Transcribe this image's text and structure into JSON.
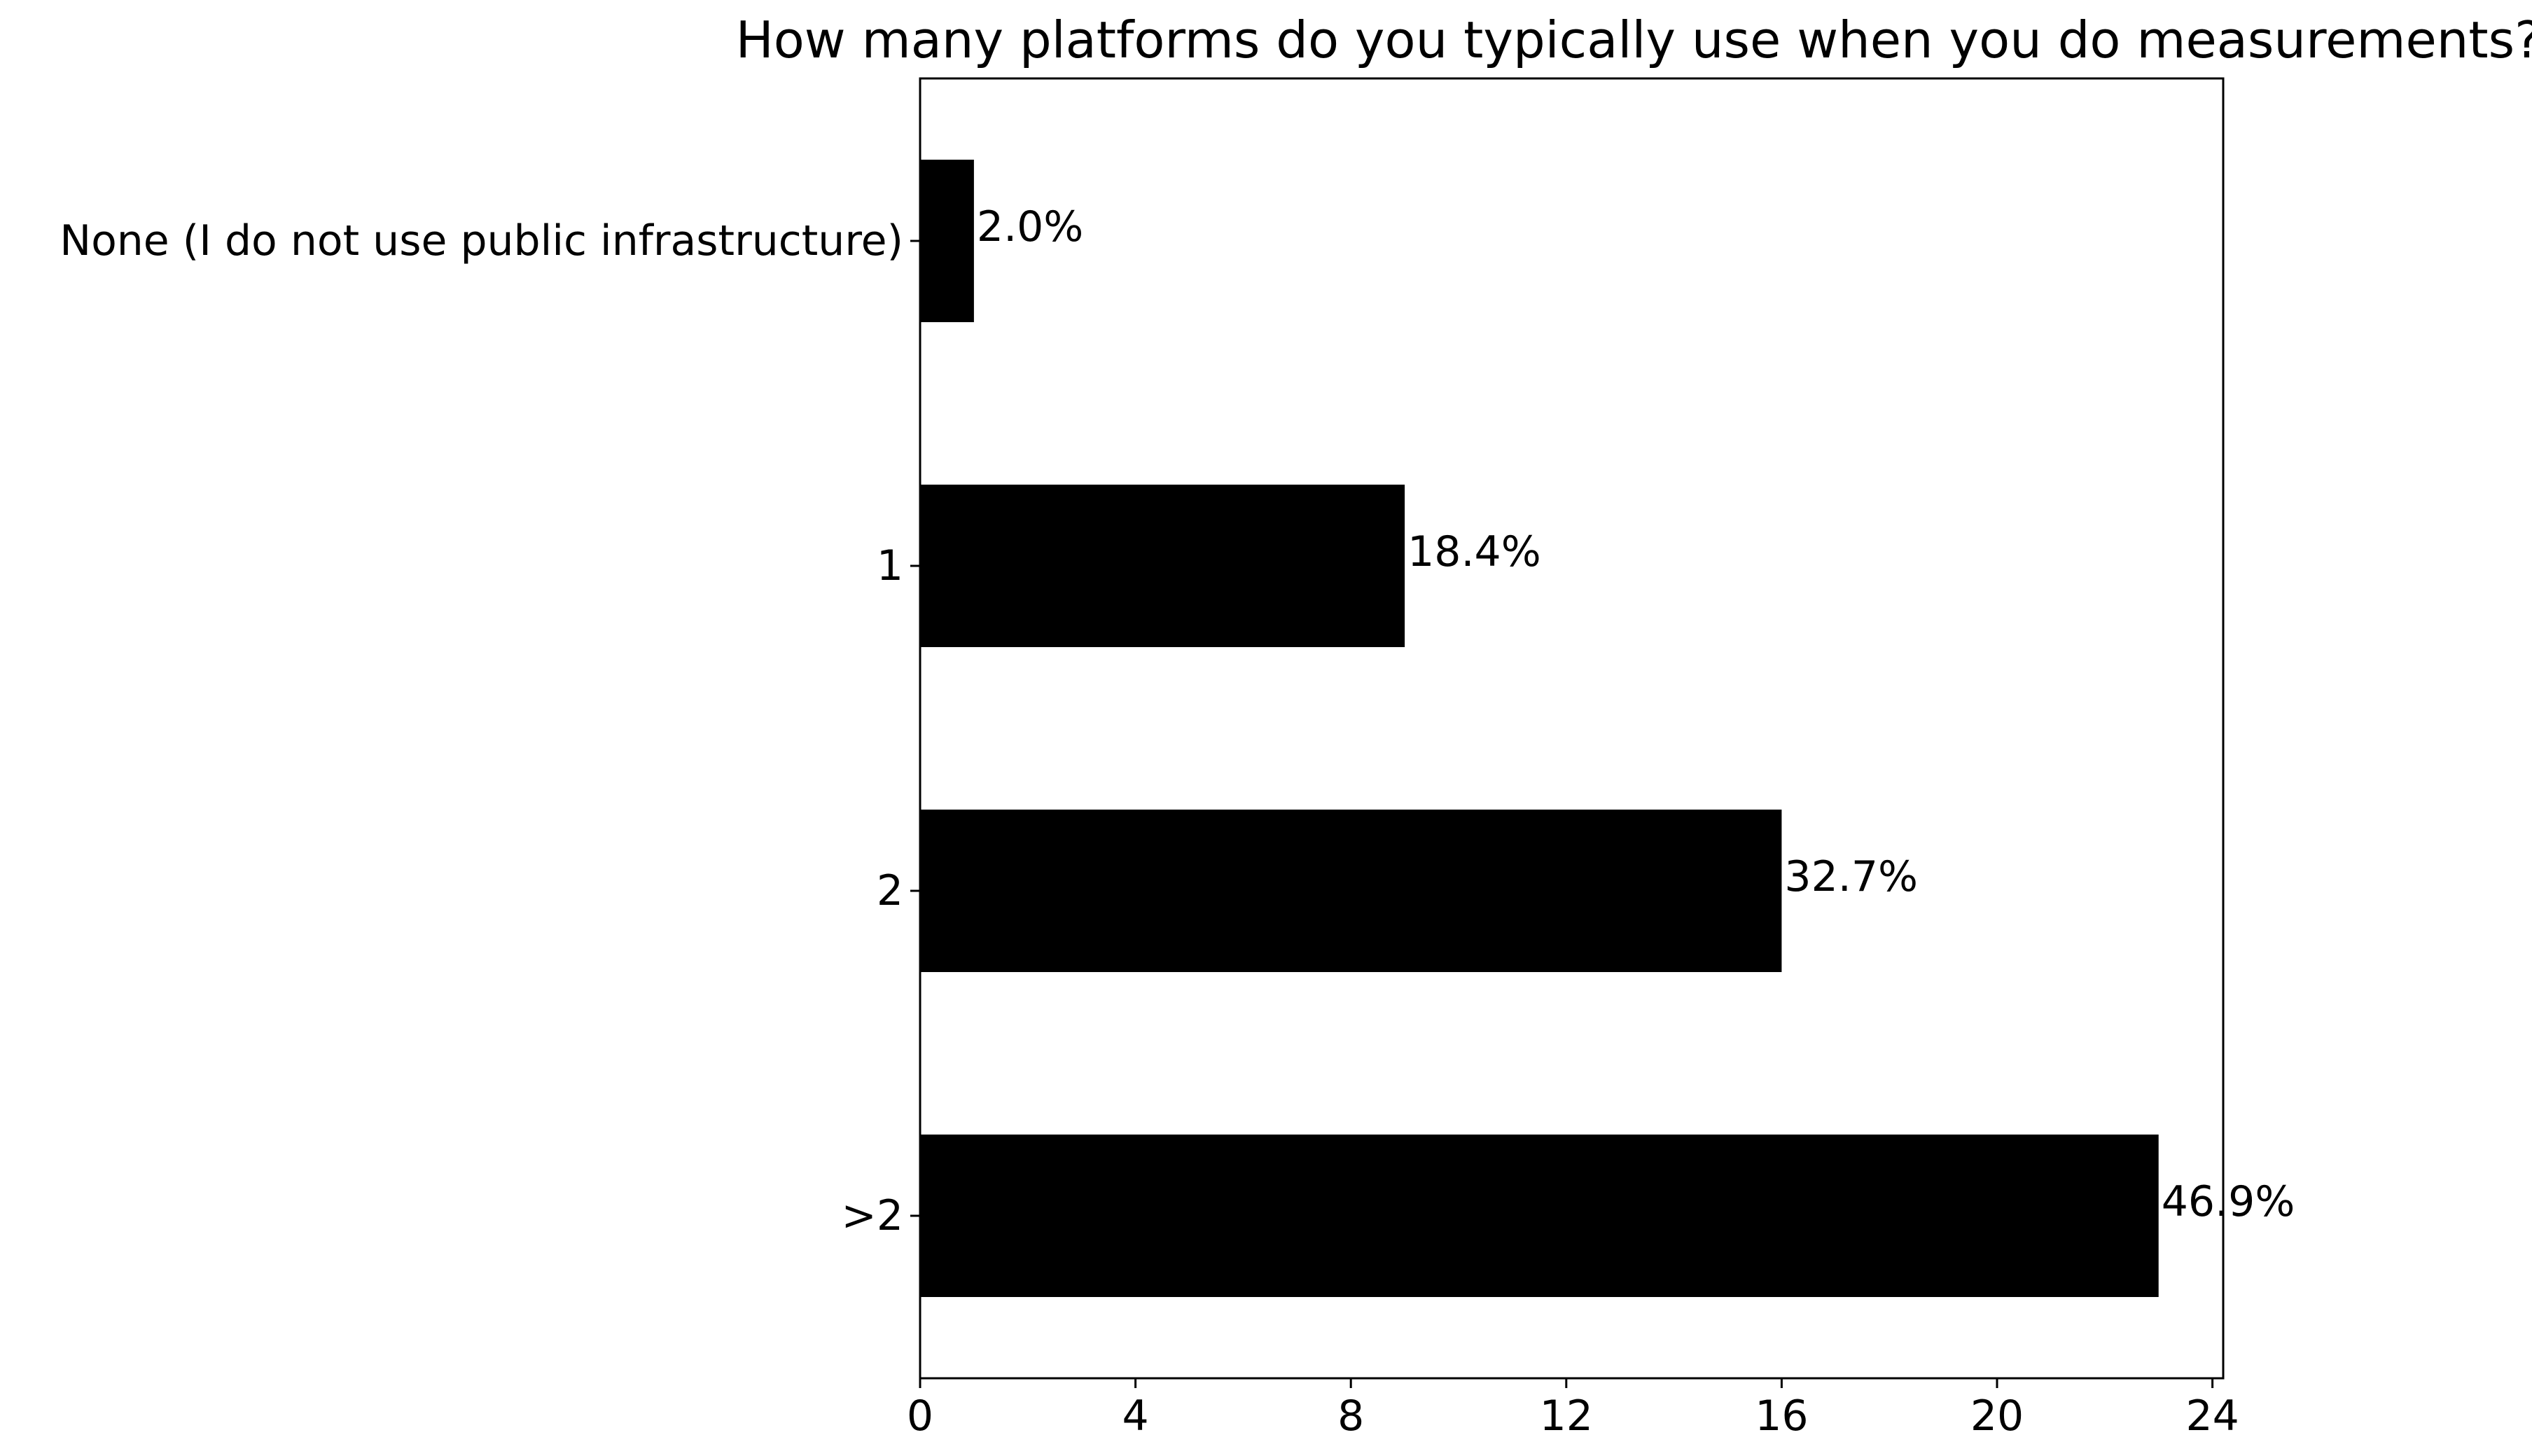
{
  "chart_data": {
    "type": "bar",
    "orientation": "horizontal",
    "title": "How many platforms do you typically use when you do measurements?",
    "xlabel": "",
    "ylabel": "",
    "categories": [
      "None (I do not use public infrastructure)",
      "1",
      "2",
      ">2"
    ],
    "values": [
      1,
      9,
      16,
      23
    ],
    "data_labels": [
      "2.0%",
      "18.4%",
      "32.7%",
      "46.9%"
    ],
    "xlim": [
      0,
      24.2
    ],
    "xticks": [
      0,
      4,
      8,
      12,
      16,
      20,
      24
    ],
    "xtick_labels": [
      "0",
      "4",
      "8",
      "12",
      "16",
      "20",
      "24"
    ],
    "grid": false,
    "bar_color": "#000000"
  }
}
